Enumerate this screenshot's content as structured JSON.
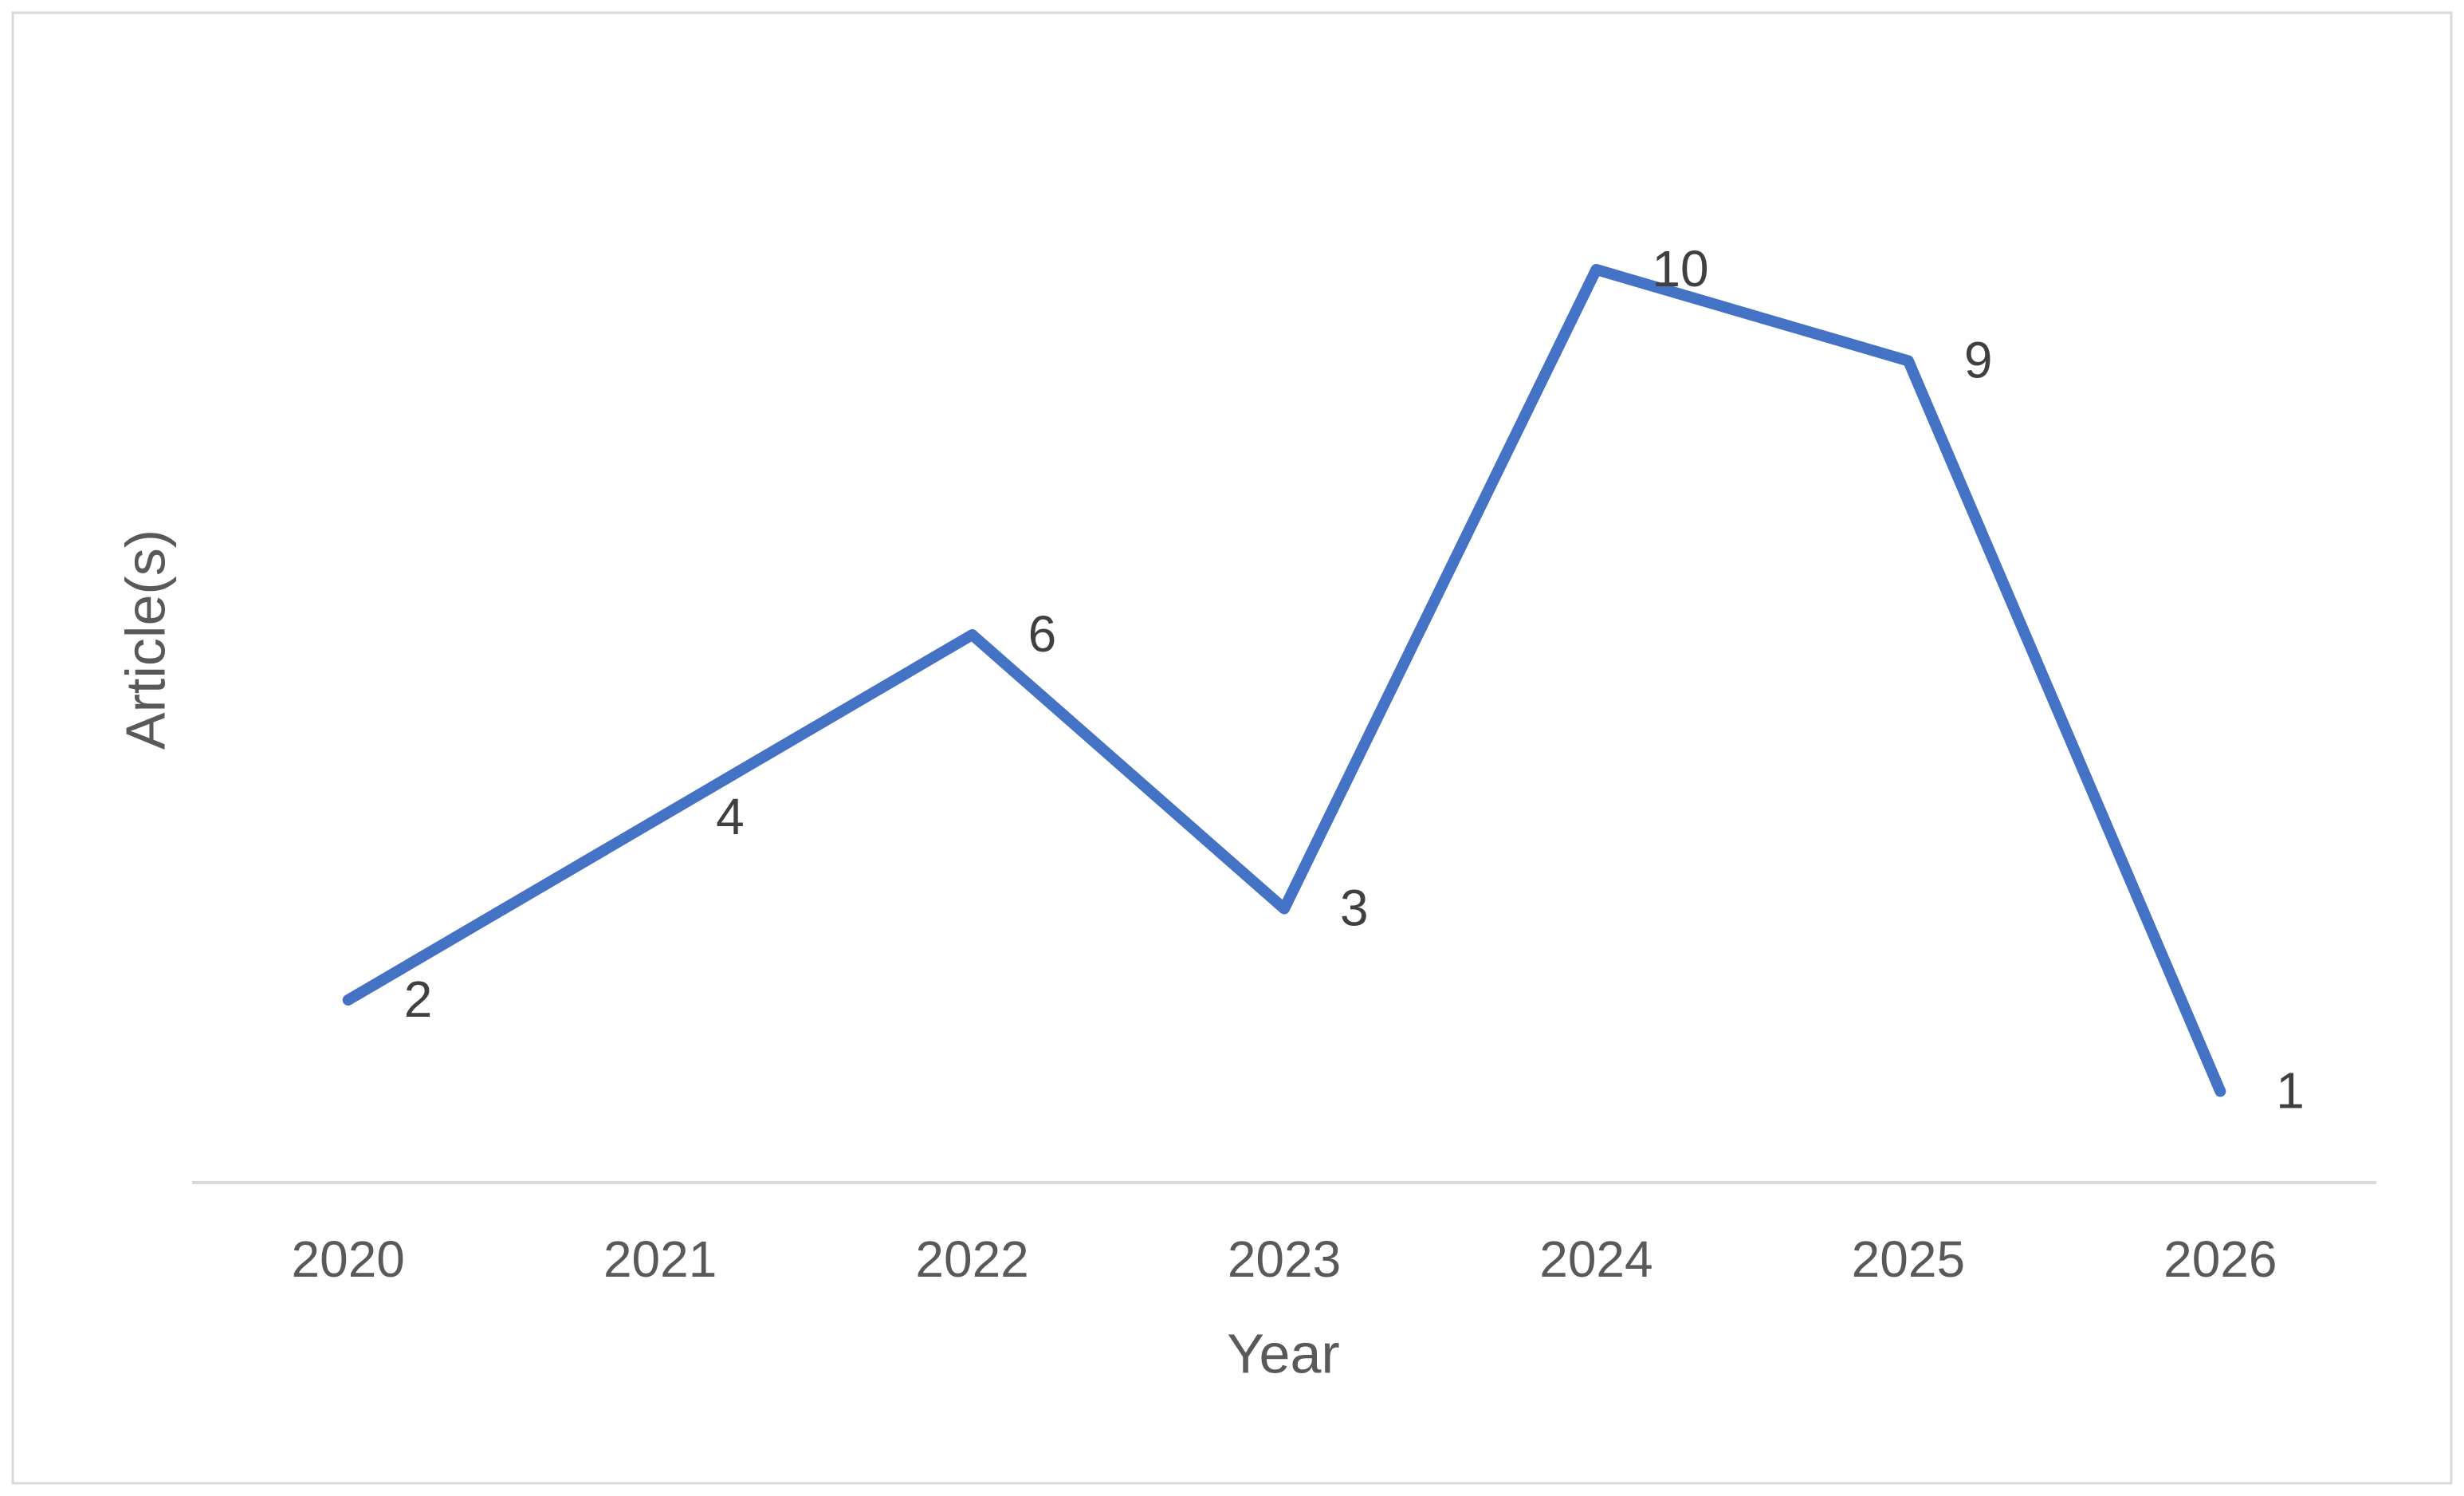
{
  "chart_data": {
    "type": "line",
    "x_label": "Year",
    "y_label": "Article(s)",
    "categories": [
      "2020",
      "2021",
      "2022",
      "2023",
      "2024",
      "2025",
      "2026"
    ],
    "values": [
      2,
      4,
      6,
      3,
      10,
      9,
      1
    ],
    "color": "#4472c4",
    "ylim": [
      0,
      12
    ],
    "grid": false
  }
}
